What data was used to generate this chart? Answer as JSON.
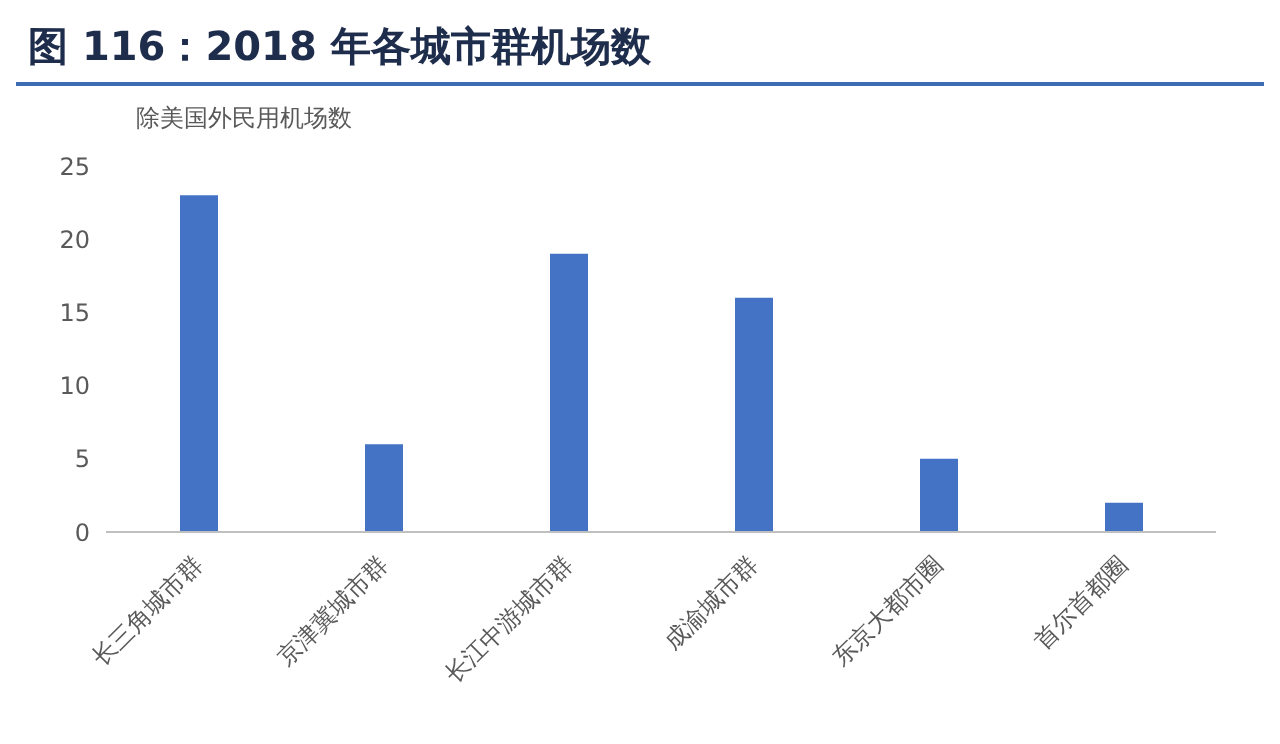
{
  "chart_data": {
    "type": "bar",
    "title": "图 116：2018 年各城市群机场数",
    "ylabel": "除美国外民用机场数",
    "categories": [
      "长三角城市群",
      "京津冀城市群",
      "长江中游城市群",
      "成渝城市群",
      "东京大都市圈",
      "首尔首都圈"
    ],
    "values": [
      23,
      6,
      19,
      16,
      5,
      2
    ],
    "color": "#4472c4",
    "ylim": [
      0,
      25
    ],
    "yticks": [
      0,
      5,
      10,
      15,
      20,
      25
    ],
    "grid": false,
    "legend": false
  }
}
